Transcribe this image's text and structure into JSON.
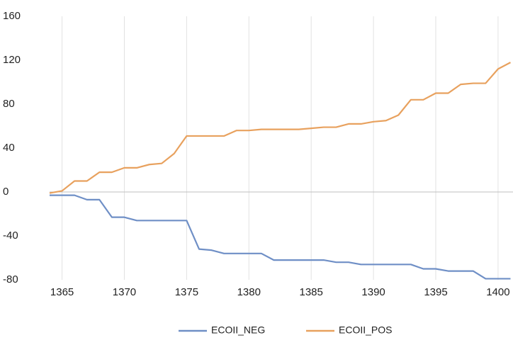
{
  "chart_data": {
    "type": "line",
    "x": [
      1364,
      1365,
      1366,
      1367,
      1368,
      1369,
      1370,
      1371,
      1372,
      1373,
      1374,
      1375,
      1376,
      1377,
      1378,
      1379,
      1380,
      1381,
      1382,
      1383,
      1384,
      1385,
      1386,
      1387,
      1388,
      1389,
      1390,
      1391,
      1392,
      1393,
      1394,
      1395,
      1396,
      1397,
      1398,
      1399,
      1400,
      1401
    ],
    "series": [
      {
        "name": "ECOII_NEG",
        "color": "#6f8fc6",
        "values": [
          -3,
          -3,
          -3,
          -7,
          -7,
          -23,
          -23,
          -26,
          -26,
          -26,
          -26,
          -26,
          -52,
          -53,
          -56,
          -56,
          -56,
          -56,
          -62,
          -62,
          -62,
          -62,
          -62,
          -64,
          -64,
          -66,
          -66,
          -66,
          -66,
          -66,
          -70,
          -70,
          -72,
          -72,
          -72,
          -79,
          -79,
          -79
        ]
      },
      {
        "name": "ECOII_POS",
        "color": "#e8a15e",
        "values": [
          -1,
          1,
          10,
          10,
          18,
          18,
          22,
          22,
          25,
          26,
          35,
          51,
          51,
          51,
          51,
          56,
          56,
          57,
          57,
          57,
          57,
          58,
          59,
          59,
          62,
          62,
          64,
          65,
          70,
          84,
          84,
          90,
          90,
          98,
          99,
          99,
          112,
          118
        ]
      }
    ],
    "xlim": [
      1364,
      1401.2
    ],
    "xticks": [
      1365,
      1370,
      1375,
      1380,
      1385,
      1390,
      1395,
      1400
    ],
    "ylim": [
      -80,
      160
    ],
    "yticks": [
      160,
      120,
      80,
      40,
      0,
      -40,
      -80
    ],
    "grid": "x",
    "legend": "bottom"
  }
}
